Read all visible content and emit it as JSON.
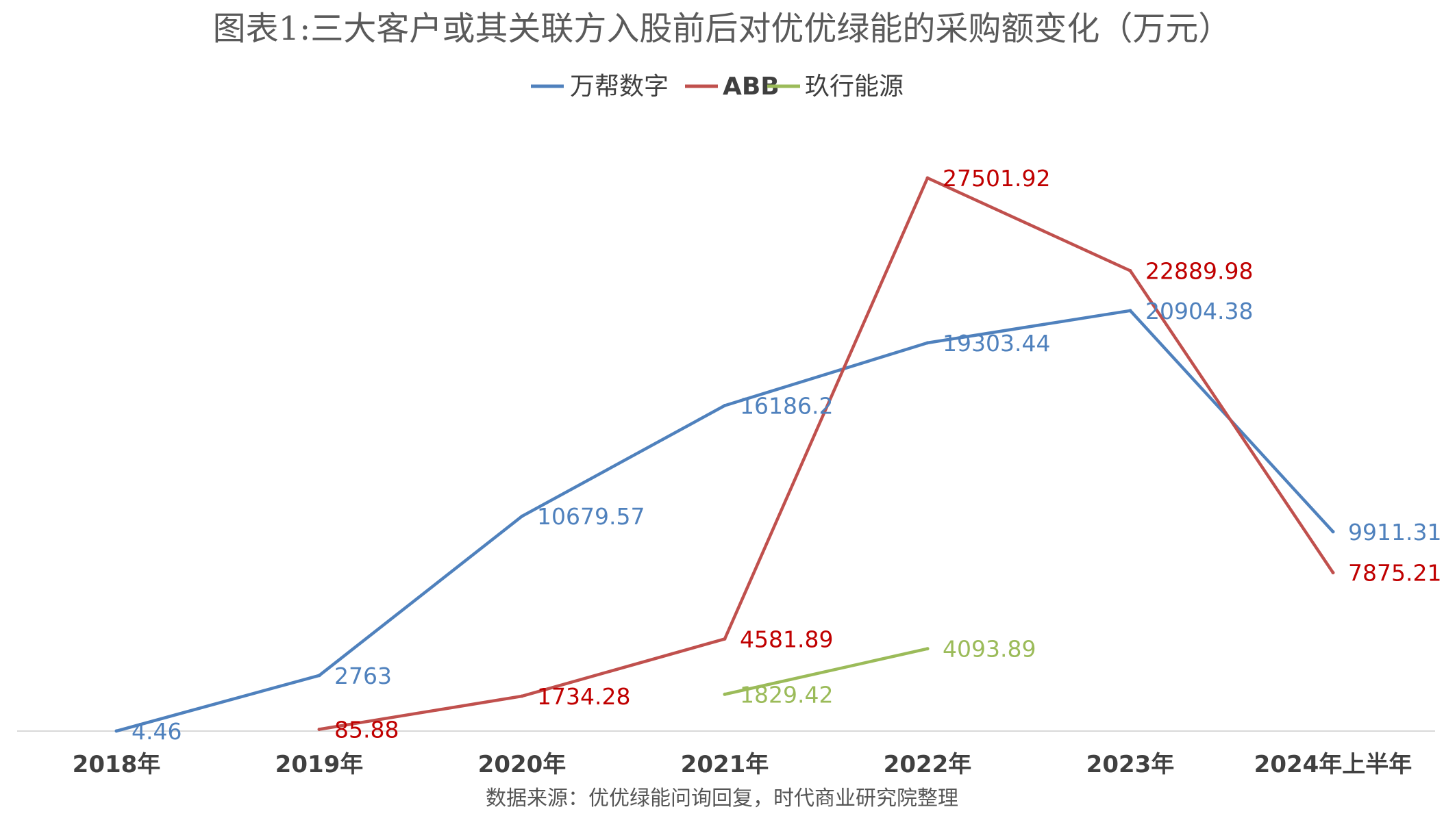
{
  "chart_data": {
    "type": "line",
    "title": "图表1:三大客户或其关联方入股前后对优优绿能的采购额变化（万元）",
    "categories": [
      "2018年",
      "2019年",
      "2020年",
      "2021年",
      "2022年",
      "2023年",
      "2024年上半年"
    ],
    "series": [
      {
        "name": "万帮数字",
        "color": "#4f81bd",
        "values": [
          4.46,
          2763,
          10679.57,
          16186.2,
          19303.44,
          20904.38,
          9911.31
        ],
        "labels": [
          "4.46",
          "2763",
          "10679.57",
          "16186.2",
          "19303.44",
          "20904.38",
          "9911.31"
        ]
      },
      {
        "name": "ABB",
        "color": "#c0504d",
        "label_color": "#c00000",
        "values": [
          null,
          85.88,
          1734.28,
          4581.89,
          27501.92,
          22889.98,
          7875.21
        ],
        "labels": [
          null,
          "85.88",
          "1734.28",
          "4581.89",
          "27501.92",
          "22889.98",
          "7875.21"
        ]
      },
      {
        "name": "玖行能源",
        "color": "#9bbb59",
        "values": [
          null,
          null,
          null,
          1829.42,
          4093.89,
          null,
          null
        ],
        "labels": [
          null,
          null,
          null,
          "1829.42",
          "4093.89",
          null,
          null
        ]
      }
    ],
    "ylim": [
      0,
      27501.92
    ],
    "grid": false,
    "legend_position": "top-center",
    "source": "数据来源：优优绿能问询回复，时代商业研究院整理"
  }
}
